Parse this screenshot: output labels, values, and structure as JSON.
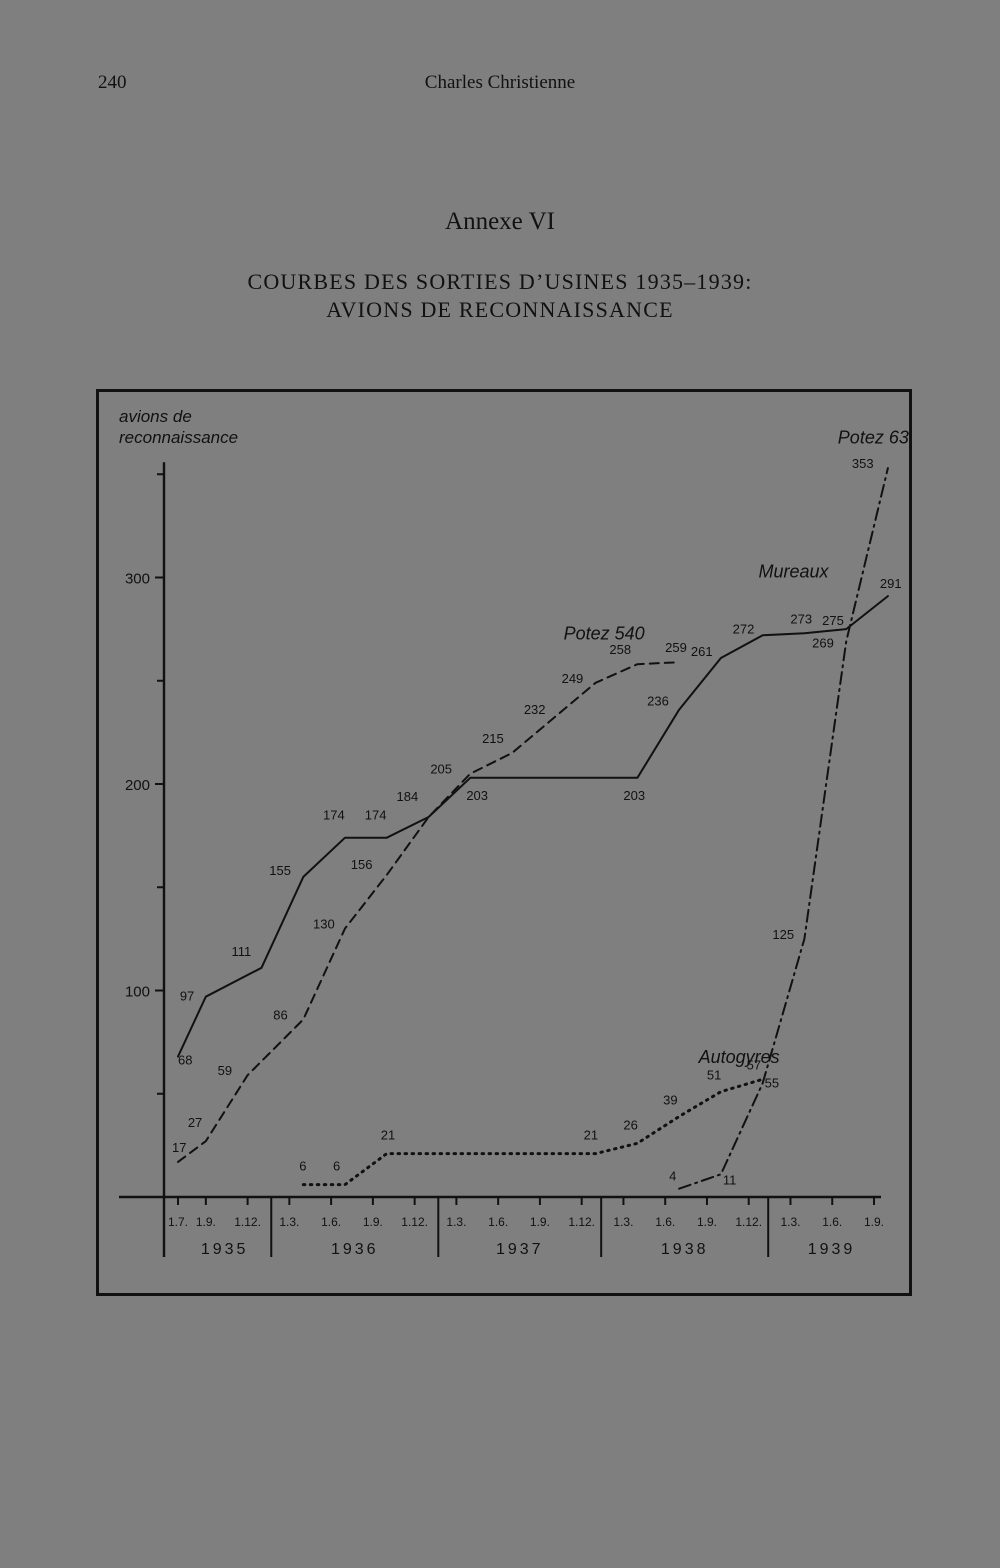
{
  "page": {
    "page_number": "240",
    "running_header": "Charles Christienne",
    "annexe": "Annexe VI",
    "title_line1": "COURBES DES SORTIES D’USINES 1935–1939:",
    "title_line2": "AVIONS DE RECONNAISSANCE"
  },
  "chart_data": {
    "type": "line",
    "ylabel": [
      "avions de",
      "reconnaissance"
    ],
    "ylim": [
      0,
      350
    ],
    "y_ticks": [
      100,
      200,
      300
    ],
    "y_tick_labels": [
      "100",
      "200",
      "300"
    ],
    "y_minor_ticks": [
      50,
      150,
      250,
      350
    ],
    "grid": false,
    "x_ticks": [
      {
        "i": 0,
        "label": "1.7."
      },
      {
        "i": 2,
        "label": "1.9."
      },
      {
        "i": 5,
        "label": "1.12."
      },
      {
        "i": 8,
        "label": "1.3."
      },
      {
        "i": 11,
        "label": "1.6."
      },
      {
        "i": 14,
        "label": "1.9."
      },
      {
        "i": 17,
        "label": "1.12."
      },
      {
        "i": 20,
        "label": "1.3."
      },
      {
        "i": 23,
        "label": "1.6."
      },
      {
        "i": 26,
        "label": "1.9."
      },
      {
        "i": 29,
        "label": "1.12."
      },
      {
        "i": 32,
        "label": "1.3."
      },
      {
        "i": 35,
        "label": "1.6."
      },
      {
        "i": 38,
        "label": "1.9."
      },
      {
        "i": 41,
        "label": "1.12."
      },
      {
        "i": 44,
        "label": "1.3."
      },
      {
        "i": 47,
        "label": "1.6."
      },
      {
        "i": 50,
        "label": "1.9."
      }
    ],
    "years": [
      {
        "label": "1935",
        "from": 0,
        "to": 6.7
      },
      {
        "label": "1936",
        "from": 6.7,
        "to": 18.7
      },
      {
        "label": "1937",
        "from": 18.7,
        "to": 30.4
      },
      {
        "label": "1938",
        "from": 30.4,
        "to": 42.4
      },
      {
        "label": "1939",
        "from": 42.4,
        "to": 51.5
      }
    ],
    "year_dividers": [
      6.7,
      18.7,
      30.4,
      42.4
    ],
    "series": [
      {
        "name": "Mureaux",
        "style": "solid",
        "label_at": [
          41.7,
          300
        ],
        "points": [
          {
            "x": 0,
            "y": 68,
            "label": "68",
            "dx": 0,
            "dy": 8
          },
          {
            "x": 2,
            "y": 97,
            "label": "97",
            "dx": -26,
            "dy": 4
          },
          {
            "x": 6,
            "y": 111,
            "label": "111",
            "dx": -30,
            "dy": -12
          },
          {
            "x": 9,
            "y": 155,
            "label": "155",
            "dx": -34,
            "dy": -2
          },
          {
            "x": 12,
            "y": 174,
            "label": "174",
            "dx": -22,
            "dy": -18
          },
          {
            "x": 15,
            "y": 174,
            "label": "174",
            "dx": -22,
            "dy": -18
          },
          {
            "x": 18,
            "y": 184,
            "label": "184",
            "dx": -32,
            "dy": -16
          },
          {
            "x": 21,
            "y": 203,
            "label": "203",
            "dx": -4,
            "dy": 22
          },
          {
            "x": 33,
            "y": 203,
            "label": "203",
            "dx": -14,
            "dy": 22
          },
          {
            "x": 36,
            "y": 236,
            "label": "236",
            "dx": -32,
            "dy": -4
          },
          {
            "x": 39,
            "y": 261,
            "label": "261",
            "dx": -30,
            "dy": -2
          },
          {
            "x": 42,
            "y": 272,
            "label": "272",
            "dx": -30,
            "dy": -2
          },
          {
            "x": 45,
            "y": 273,
            "label": "273",
            "dx": -14,
            "dy": -10
          },
          {
            "x": 48,
            "y": 275,
            "label": "275",
            "dx": -24,
            "dy": -4
          },
          {
            "x": 51,
            "y": 291,
            "label": "291",
            "dx": -8,
            "dy": -8
          }
        ]
      },
      {
        "name": "Potez 540",
        "style": "dashed",
        "label_at": [
          27.7,
          270
        ],
        "points": [
          {
            "x": 0,
            "y": 17,
            "label": "17",
            "dx": -6,
            "dy": -10
          },
          {
            "x": 2,
            "y": 27,
            "label": "27",
            "dx": -18,
            "dy": -14
          },
          {
            "x": 5,
            "y": 59,
            "label": "59",
            "dx": -30,
            "dy": 0
          },
          {
            "x": 9,
            "y": 86,
            "label": "86",
            "dx": -30,
            "dy": 0
          },
          {
            "x": 12,
            "y": 130,
            "label": "130",
            "dx": -32,
            "dy": 0
          },
          {
            "x": 15,
            "y": 156,
            "label": "156",
            "dx": -36,
            "dy": -6
          },
          {
            "x": 18,
            "y": 184,
            "label": null,
            "dx": 0,
            "dy": 0
          },
          {
            "x": 21,
            "y": 205,
            "label": "205",
            "dx": -40,
            "dy": 0
          },
          {
            "x": 24,
            "y": 215,
            "label": "215",
            "dx": -30,
            "dy": -10
          },
          {
            "x": 27,
            "y": 232,
            "label": "232",
            "dx": -30,
            "dy": -4
          },
          {
            "x": 30,
            "y": 249,
            "label": "249",
            "dx": -34,
            "dy": 0
          },
          {
            "x": 33,
            "y": 258,
            "label": "258",
            "dx": -28,
            "dy": -10
          },
          {
            "x": 36,
            "y": 259,
            "label": "259",
            "dx": -14,
            "dy": -10
          }
        ]
      },
      {
        "name": "Autogyres",
        "style": "dotted",
        "label_at": [
          37.4,
          65
        ],
        "points": [
          {
            "x": 9,
            "y": 6,
            "label": "6",
            "dx": -4,
            "dy": -14
          },
          {
            "x": 12,
            "y": 6,
            "label": "6",
            "dx": -12,
            "dy": -14
          },
          {
            "x": 15,
            "y": 21,
            "label": "21",
            "dx": -6,
            "dy": -14
          },
          {
            "x": 30,
            "y": 21,
            "label": "21",
            "dx": -12,
            "dy": -14
          },
          {
            "x": 33,
            "y": 26,
            "label": "26",
            "dx": -14,
            "dy": -14
          },
          {
            "x": 36,
            "y": 39,
            "label": "39",
            "dx": -16,
            "dy": -12
          },
          {
            "x": 39,
            "y": 51,
            "label": "51",
            "dx": -14,
            "dy": -12
          },
          {
            "x": 42,
            "y": 57,
            "label": "57",
            "dx": -16,
            "dy": -10
          }
        ]
      },
      {
        "name": "Potez 63",
        "style": "dashdot",
        "label_at": [
          47.4,
          365
        ],
        "points": [
          {
            "x": 36,
            "y": 4,
            "label": "4",
            "dx": -10,
            "dy": -8
          },
          {
            "x": 39,
            "y": 11,
            "label": "11",
            "dx": 2,
            "dy": 10
          },
          {
            "x": 42,
            "y": 55,
            "label": "55",
            "dx": 2,
            "dy": 4
          },
          {
            "x": 45,
            "y": 125,
            "label": "125",
            "dx": -32,
            "dy": 0
          },
          {
            "x": 48,
            "y": 269,
            "label": "269",
            "dx": -34,
            "dy": 6
          },
          {
            "x": 51,
            "y": 353,
            "label": "353",
            "dx": -36,
            "dy": 0
          }
        ]
      }
    ]
  }
}
